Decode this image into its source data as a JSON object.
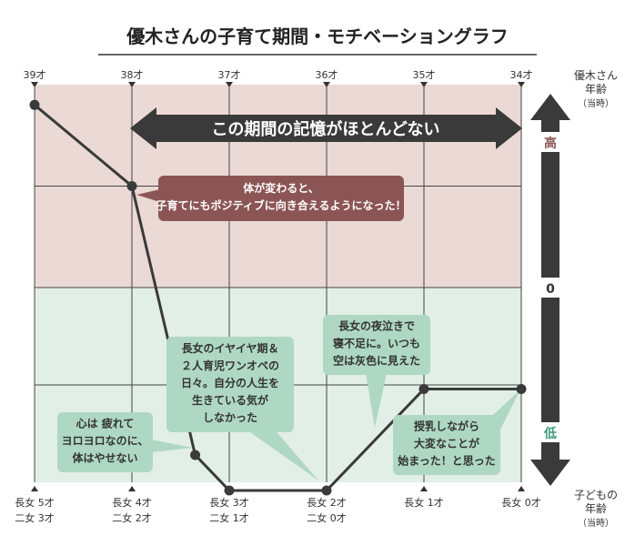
{
  "chart_data": {
    "type": "line",
    "title": "優木さんの子育て期間・モチベーショングラフ",
    "top_axis_label": [
      "優木さん",
      "年齢",
      "（当時）"
    ],
    "bottom_axis_label": [
      "子どもの",
      "年齢",
      "（当時）"
    ],
    "x_top": [
      "39才",
      "38才",
      "37才",
      "36才",
      "35才",
      "34才"
    ],
    "x_bottom": [
      [
        "長女 5才",
        "二女 3才"
      ],
      [
        "長女 4才",
        "二女 2才"
      ],
      [
        "長女 3才",
        "二女 1才"
      ],
      [
        "長女 2才",
        "二女 0才"
      ],
      [
        "長女 1才",
        ""
      ],
      [
        "長女 0才",
        ""
      ]
    ],
    "y_scale": {
      "high": "高",
      "zero": "0",
      "low": "低"
    },
    "ylim": [
      -2,
      2
    ],
    "series": [
      {
        "x": [
          0,
          1,
          1.65,
          2,
          3,
          4,
          5
        ],
        "values": [
          1.8,
          1.0,
          -1.65,
          -2.0,
          -2.0,
          -1.0,
          -1.0
        ]
      }
    ],
    "colors": {
      "upper_band": "#ead9d5",
      "lower_band": "#e2efe6",
      "line": "#3a3a3a",
      "callout_red": "#8c5555",
      "callout_green": "#aed8c4",
      "arrow_dark": "#3a3a3a"
    },
    "annotations": {
      "banner": "この期間の記憶がほとんどない",
      "callout1": [
        "体が変わると、",
        "子育てにもポジティブに向き合えるようになった！"
      ],
      "callout2": [
        "長女のイヤイヤ期＆",
        "２人育児ワンオペの",
        "日々。自分の人生を",
        "生きている気が",
        "しなかった"
      ],
      "callout3": [
        "心は 疲れて",
        "ヨロヨロなのに、",
        "体はやせない"
      ],
      "callout4": [
        "長女の夜泣きで",
        "寝不足に。いつも",
        "空は灰色に見えた"
      ],
      "callout5": [
        "授乳しながら",
        "大変なことが",
        "始まった！と思った"
      ]
    }
  }
}
